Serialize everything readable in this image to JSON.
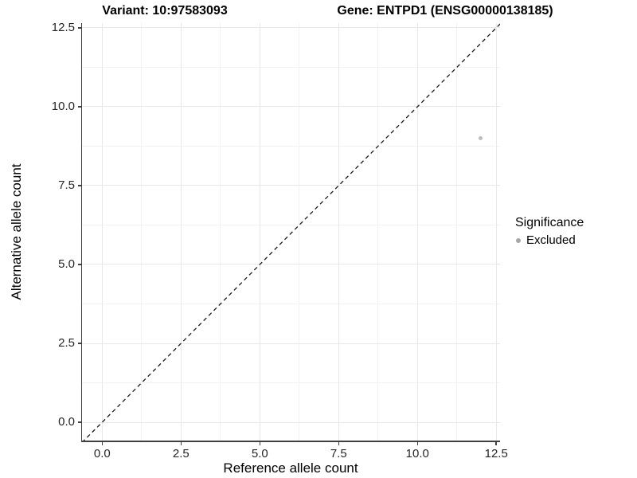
{
  "colors": {
    "background": "#ffffff",
    "grid_major": "#e8e8e8",
    "grid_minor": "#f2f2f2",
    "axis_line": "#404040",
    "tick_text": "#262626",
    "title_text": "#000000",
    "point": "#bdbdbd",
    "legend_point": "#a6a6a6",
    "reference_line": "#1a1a1a"
  },
  "chart_data": {
    "type": "scatter",
    "title_left": "Variant: 10:97583093",
    "title_right": "Gene: ENTPD1 (ENSG00000138185)",
    "xlabel": "Reference allele count",
    "ylabel": "Alternative allele count",
    "xlim": [
      -0.64,
      12.62
    ],
    "ylim": [
      -0.58,
      12.65
    ],
    "x_ticks": {
      "values": [
        0,
        2.5,
        5,
        7.5,
        10,
        12.5
      ],
      "labels": [
        "0.0",
        "2.5",
        "5.0",
        "7.5",
        "10.0",
        "12.5"
      ]
    },
    "y_ticks": {
      "values": [
        0,
        2.5,
        5,
        7.5,
        10,
        12.5
      ],
      "labels": [
        "0.0",
        "2.5",
        "5.0",
        "7.5",
        "10.0",
        "12.5"
      ]
    },
    "x_minor": [
      1.25,
      3.75,
      6.25,
      8.75,
      11.25
    ],
    "y_minor": [
      1.25,
      3.75,
      6.25,
      8.75,
      11.25
    ],
    "grid": "major-and-minor",
    "series": [
      {
        "name": "Excluded",
        "color": "#bdbdbd",
        "points": [
          [
            12,
            9
          ]
        ]
      }
    ],
    "reference_line": {
      "kind": "identity y=x",
      "style": "dashed",
      "color": "#1a1a1a",
      "from": [
        -0.64,
        -0.64
      ],
      "to": [
        12.7,
        12.7
      ]
    },
    "legend": {
      "position": "right",
      "title": "Significance",
      "items": [
        {
          "label": "Excluded",
          "color": "#a6a6a6"
        }
      ]
    }
  }
}
